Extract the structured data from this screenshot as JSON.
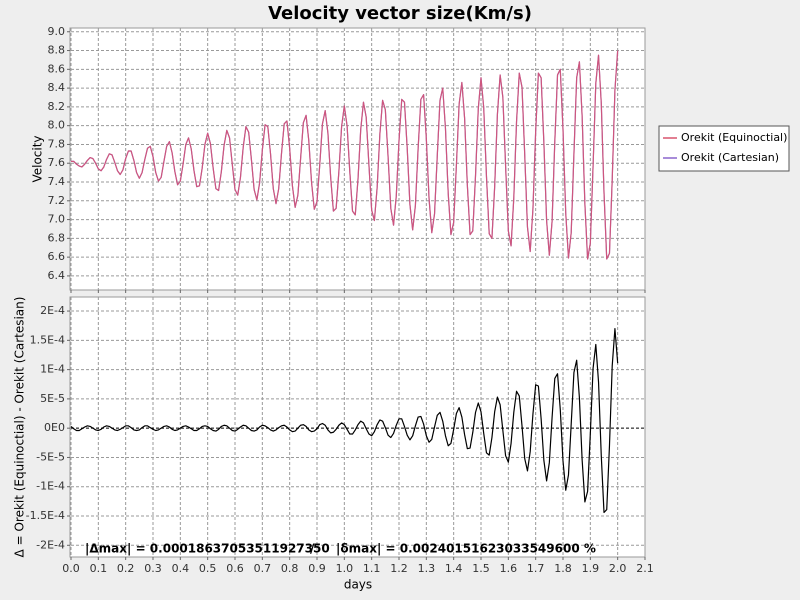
{
  "chart_data": [
    {
      "type": "line",
      "title": "Velocity vector size(Km/s)",
      "ylabel": "Velocity",
      "grid": true,
      "legend": "right",
      "xlim": [
        0,
        2.1
      ],
      "xticks": [
        {
          "value": 0,
          "label": "0.0"
        },
        0.1,
        0.2,
        0.3,
        0.4,
        0.5,
        0.6,
        0.7,
        0.8,
        0.9,
        {
          "value": 1,
          "label": "1.0"
        },
        1.1,
        1.2,
        1.3,
        1.4,
        1.5,
        1.6,
        1.7,
        1.8,
        1.9,
        {
          "value": 2,
          "label": "2.0"
        },
        2.1
      ],
      "ylim": [
        6.25,
        9.04
      ],
      "yticks": [
        6.4,
        6.6,
        6.8,
        {
          "value": 7,
          "label": "7.0"
        },
        7.2,
        7.4,
        7.6,
        7.8,
        {
          "value": 8,
          "label": "8.0"
        },
        8.2,
        8.4,
        8.6,
        8.8,
        {
          "value": 9,
          "label": "9.0"
        }
      ],
      "x": [
        0,
        0.01,
        0.02,
        0.03,
        0.04,
        0.05,
        0.06,
        0.07,
        0.08,
        0.09,
        0.1,
        0.11,
        0.12,
        0.13,
        0.14,
        0.15,
        0.16,
        0.17,
        0.18,
        0.19,
        0.2,
        0.21,
        0.22,
        0.23,
        0.24,
        0.25,
        0.26,
        0.27,
        0.28,
        0.29,
        0.3,
        0.31,
        0.32,
        0.33,
        0.34,
        0.35,
        0.36,
        0.37,
        0.38,
        0.39,
        0.4,
        0.41,
        0.42,
        0.43,
        0.44,
        0.45,
        0.46,
        0.47,
        0.48,
        0.49,
        0.5,
        0.51,
        0.52,
        0.53,
        0.54,
        0.55,
        0.56,
        0.57,
        0.58,
        0.59,
        0.6,
        0.61,
        0.62,
        0.63,
        0.64,
        0.65,
        0.66,
        0.67,
        0.68,
        0.69,
        0.7,
        0.71,
        0.72,
        0.73,
        0.74,
        0.75,
        0.76,
        0.77,
        0.78,
        0.79,
        0.8,
        0.81,
        0.82,
        0.83,
        0.84,
        0.85,
        0.86,
        0.87,
        0.88,
        0.89,
        0.9,
        0.91,
        0.92,
        0.93,
        0.94,
        0.95,
        0.96,
        0.97,
        0.98,
        0.99,
        1,
        1.01,
        1.02,
        1.03,
        1.04,
        1.05,
        1.06,
        1.07,
        1.08,
        1.09,
        1.1,
        1.11,
        1.12,
        1.13,
        1.14,
        1.15,
        1.16,
        1.17,
        1.18,
        1.19,
        1.2,
        1.21,
        1.22,
        1.23,
        1.24,
        1.25,
        1.26,
        1.27,
        1.28,
        1.29,
        1.3,
        1.31,
        1.32,
        1.33,
        1.34,
        1.35,
        1.36,
        1.37,
        1.38,
        1.39,
        1.4,
        1.41,
        1.42,
        1.43,
        1.44,
        1.45,
        1.46,
        1.47,
        1.48,
        1.49,
        1.5,
        1.51,
        1.52,
        1.53,
        1.54,
        1.55,
        1.56,
        1.57,
        1.58,
        1.59,
        1.6,
        1.61,
        1.62,
        1.63,
        1.64,
        1.65,
        1.66,
        1.67,
        1.68,
        1.69,
        1.7,
        1.71,
        1.72,
        1.73,
        1.74,
        1.75,
        1.76,
        1.77,
        1.78,
        1.79,
        1.8,
        1.81,
        1.82,
        1.83,
        1.84,
        1.85,
        1.86,
        1.87,
        1.88,
        1.89,
        1.9,
        1.91,
        1.92,
        1.93,
        1.94,
        1.95,
        1.96,
        1.97,
        1.98,
        1.99,
        2
      ],
      "series": [
        {
          "name": "Orekit (Equinoctial)",
          "color": "#d9546e",
          "values": [
            7.62,
            7.62,
            7.59,
            7.57,
            7.56,
            7.59,
            7.63,
            7.66,
            7.65,
            7.6,
            7.54,
            7.52,
            7.56,
            7.64,
            7.7,
            7.69,
            7.61,
            7.52,
            7.48,
            7.53,
            7.65,
            7.73,
            7.73,
            7.63,
            7.5,
            7.44,
            7.5,
            7.64,
            7.76,
            7.78,
            7.67,
            7.5,
            7.41,
            7.45,
            7.62,
            7.78,
            7.83,
            7.71,
            7.51,
            7.37,
            7.41,
            7.59,
            7.8,
            7.87,
            7.75,
            7.52,
            7.35,
            7.36,
            7.55,
            7.8,
            7.92,
            7.81,
            7.55,
            7.33,
            7.31,
            7.51,
            7.79,
            7.95,
            7.87,
            7.59,
            7.32,
            7.26,
            7.45,
            7.77,
            7.99,
            7.93,
            7.64,
            7.32,
            7.21,
            7.39,
            7.74,
            8.01,
            7.99,
            7.7,
            7.33,
            7.17,
            7.33,
            7.7,
            8.02,
            8.05,
            7.76,
            7.36,
            7.13,
            7.26,
            7.65,
            8.03,
            8.11,
            7.84,
            7.4,
            7.11,
            7.19,
            7.58,
            8.02,
            8.16,
            7.92,
            7.45,
            7.09,
            7.12,
            7.51,
            7.99,
            8.21,
            8.0,
            7.51,
            7.09,
            7.05,
            7.43,
            7.96,
            8.25,
            8.09,
            7.58,
            7.1,
            6.99,
            7.34,
            7.91,
            8.27,
            8.17,
            7.67,
            7.12,
            6.94,
            7.25,
            7.84,
            8.28,
            8.25,
            7.76,
            7.16,
            6.89,
            7.15,
            7.76,
            8.28,
            8.33,
            7.86,
            7.22,
            6.86,
            7.06,
            7.68,
            8.27,
            8.4,
            7.97,
            7.28,
            6.84,
            6.97,
            7.58,
            8.23,
            8.46,
            8.08,
            7.37,
            6.84,
            6.88,
            7.47,
            8.18,
            8.51,
            8.19,
            7.46,
            6.85,
            6.8,
            7.35,
            8.12,
            8.54,
            8.3,
            7.57,
            6.88,
            6.72,
            7.23,
            8.04,
            8.56,
            8.41,
            7.69,
            6.92,
            6.66,
            7.11,
            7.94,
            8.56,
            8.51,
            7.82,
            6.99,
            6.62,
            6.98,
            7.83,
            8.54,
            8.6,
            7.96,
            7.07,
            6.59,
            6.86,
            7.7,
            8.51,
            8.68,
            8.1,
            7.17,
            6.58,
            6.75,
            7.57,
            8.45,
            8.75,
            8.24,
            7.29,
            6.58,
            6.64,
            7.42,
            8.38,
            8.8
          ]
        },
        {
          "name": "Orekit (Cartesian)",
          "color": "#8a66cc",
          "values": [
            7.62,
            7.62,
            7.59,
            7.57,
            7.56,
            7.59,
            7.63,
            7.66,
            7.65,
            7.6,
            7.54,
            7.52,
            7.56,
            7.64,
            7.7,
            7.69,
            7.61,
            7.52,
            7.48,
            7.53,
            7.65,
            7.73,
            7.73,
            7.63,
            7.5,
            7.44,
            7.5,
            7.64,
            7.76,
            7.78,
            7.67,
            7.5,
            7.41,
            7.45,
            7.62,
            7.78,
            7.83,
            7.71,
            7.51,
            7.37,
            7.41,
            7.59,
            7.8,
            7.87,
            7.75,
            7.52,
            7.35,
            7.36,
            7.55,
            7.8,
            7.92,
            7.81,
            7.55,
            7.33,
            7.31,
            7.51,
            7.79,
            7.95,
            7.87,
            7.59,
            7.32,
            7.26,
            7.45,
            7.77,
            7.99,
            7.93,
            7.64,
            7.32,
            7.21,
            7.39,
            7.74,
            8.01,
            7.99,
            7.7,
            7.33,
            7.17,
            7.33,
            7.7,
            8.02,
            8.05,
            7.76,
            7.36,
            7.13,
            7.26,
            7.65,
            8.03,
            8.11,
            7.84,
            7.4,
            7.11,
            7.19,
            7.58,
            8.02,
            8.16,
            7.92,
            7.45,
            7.09,
            7.12,
            7.51,
            7.99,
            8.21,
            8.0,
            7.51,
            7.09,
            7.05,
            7.43,
            7.96,
            8.25,
            8.09,
            7.58,
            7.1,
            6.99,
            7.34,
            7.91,
            8.27,
            8.17,
            7.67,
            7.12,
            6.94,
            7.25,
            7.84,
            8.28,
            8.25,
            7.76,
            7.16,
            6.89,
            7.15,
            7.76,
            8.28,
            8.33,
            7.86,
            7.22,
            6.86,
            7.06,
            7.68,
            8.27,
            8.4,
            7.97,
            7.28,
            6.84,
            6.97,
            7.58,
            8.23,
            8.46,
            8.08,
            7.37,
            6.84,
            6.88,
            7.47,
            8.18,
            8.51,
            8.19,
            7.46,
            6.85,
            6.8,
            7.35,
            8.12,
            8.54,
            8.3,
            7.57,
            6.88,
            6.72,
            7.23,
            8.04,
            8.56,
            8.41,
            7.69,
            6.92,
            6.66,
            7.11,
            7.94,
            8.56,
            8.51,
            7.82,
            6.99,
            6.62,
            6.98,
            7.83,
            8.54,
            8.6,
            7.96,
            7.07,
            6.59,
            6.86,
            7.7,
            8.51,
            8.68,
            8.1,
            7.17,
            6.58,
            6.75,
            7.57,
            8.45,
            8.75,
            8.24,
            7.29,
            6.58,
            6.64,
            7.42,
            8.38,
            8.8
          ]
        }
      ]
    },
    {
      "type": "line",
      "xlabel": "days",
      "ylabel": "Δ = Orekit (Equinoctial) - Orekit (Cartesian)",
      "grid": true,
      "xlim": [
        0,
        2.1
      ],
      "xticks": [
        {
          "value": 0,
          "label": "0.0"
        },
        0.1,
        0.2,
        0.3,
        0.4,
        0.5,
        0.6,
        0.7,
        0.8,
        0.9,
        {
          "value": 1,
          "label": "1.0"
        },
        1.1,
        1.2,
        1.3,
        1.4,
        1.5,
        1.6,
        1.7,
        1.8,
        1.9,
        {
          "value": 2,
          "label": "2.0"
        },
        2.1
      ],
      "ylim": [
        -0.00022,
        0.000224
      ],
      "yticks": [
        {
          "value": -0.0002,
          "label": "-2E-4"
        },
        {
          "value": -0.00015,
          "label": "-1.5E-4"
        },
        {
          "value": -0.0001,
          "label": "-1E-4"
        },
        {
          "value": -5e-05,
          "label": "-5E-5"
        },
        {
          "value": 0,
          "label": "0E0"
        },
        {
          "value": 5e-05,
          "label": "5E-5"
        },
        {
          "value": 0.0001,
          "label": "1E-4"
        },
        {
          "value": 0.00015,
          "label": "1.5E-4"
        },
        {
          "value": 0.0002,
          "label": "2E-4"
        }
      ],
      "annotations": [
        "|Δmax| = 0.00018637053511927350",
        "/",
        "|δmax| = 0.00240151623033549600 %"
      ],
      "x": [
        0,
        0.01,
        0.02,
        0.03,
        0.04,
        0.05,
        0.06,
        0.07,
        0.08,
        0.09,
        0.1,
        0.11,
        0.12,
        0.13,
        0.14,
        0.15,
        0.16,
        0.17,
        0.18,
        0.19,
        0.2,
        0.21,
        0.22,
        0.23,
        0.24,
        0.25,
        0.26,
        0.27,
        0.28,
        0.29,
        0.3,
        0.31,
        0.32,
        0.33,
        0.34,
        0.35,
        0.36,
        0.37,
        0.38,
        0.39,
        0.4,
        0.41,
        0.42,
        0.43,
        0.44,
        0.45,
        0.46,
        0.47,
        0.48,
        0.49,
        0.5,
        0.51,
        0.52,
        0.53,
        0.54,
        0.55,
        0.56,
        0.57,
        0.58,
        0.59,
        0.6,
        0.61,
        0.62,
        0.63,
        0.64,
        0.65,
        0.66,
        0.67,
        0.68,
        0.69,
        0.7,
        0.71,
        0.72,
        0.73,
        0.74,
        0.75,
        0.76,
        0.77,
        0.78,
        0.79,
        0.8,
        0.81,
        0.82,
        0.83,
        0.84,
        0.85,
        0.86,
        0.87,
        0.88,
        0.89,
        0.9,
        0.91,
        0.92,
        0.93,
        0.94,
        0.95,
        0.96,
        0.97,
        0.98,
        0.99,
        1,
        1.01,
        1.02,
        1.03,
        1.04,
        1.05,
        1.06,
        1.07,
        1.08,
        1.09,
        1.1,
        1.11,
        1.12,
        1.13,
        1.14,
        1.15,
        1.16,
        1.17,
        1.18,
        1.19,
        1.2,
        1.21,
        1.22,
        1.23,
        1.24,
        1.25,
        1.26,
        1.27,
        1.28,
        1.29,
        1.3,
        1.31,
        1.32,
        1.33,
        1.34,
        1.35,
        1.36,
        1.37,
        1.38,
        1.39,
        1.4,
        1.41,
        1.42,
        1.43,
        1.44,
        1.45,
        1.46,
        1.47,
        1.48,
        1.49,
        1.5,
        1.51,
        1.52,
        1.53,
        1.54,
        1.55,
        1.56,
        1.57,
        1.58,
        1.59,
        1.6,
        1.61,
        1.62,
        1.63,
        1.64,
        1.65,
        1.66,
        1.67,
        1.68,
        1.69,
        1.7,
        1.71,
        1.72,
        1.73,
        1.74,
        1.75,
        1.76,
        1.77,
        1.78,
        1.79,
        1.8,
        1.81,
        1.82,
        1.83,
        1.84,
        1.85,
        1.86,
        1.87,
        1.88,
        1.89,
        1.9,
        1.91,
        1.92,
        1.93,
        1.94,
        1.95,
        1.96,
        1.97,
        1.98,
        1.99,
        2
      ],
      "series": [
        {
          "color": "#000000",
          "values": [
            3e-06,
            -1e-06,
            -4e-06,
            -4e-06,
            -1e-06,
            2e-06,
            4e-06,
            3e-06,
            0,
            -3e-06,
            -4e-06,
            -2e-06,
            2e-06,
            4e-06,
            3e-06,
            0,
            -3e-06,
            -4e-06,
            -2e-06,
            1e-06,
            4e-06,
            4e-06,
            1e-06,
            -3e-06,
            -4e-06,
            -3e-06,
            1e-06,
            4e-06,
            4e-06,
            1e-06,
            -2e-06,
            -4e-06,
            -3e-06,
            0,
            3e-06,
            4e-06,
            2e-06,
            -2e-06,
            -4e-06,
            -3e-06,
            0,
            3e-06,
            4e-06,
            2e-06,
            -1e-06,
            -4e-06,
            -4e-06,
            -1e-06,
            3e-06,
            4e-06,
            3e-06,
            -1e-06,
            -4e-06,
            -5e-06,
            -2e-06,
            3e-06,
            5e-06,
            4e-06,
            0,
            -4e-06,
            -5e-06,
            -2e-06,
            2e-06,
            5e-06,
            4e-06,
            0,
            -4e-06,
            -5e-06,
            -3e-06,
            2e-06,
            5e-06,
            4e-06,
            1e-06,
            -3e-06,
            -5e-06,
            -3e-06,
            1e-06,
            4e-06,
            5e-06,
            2e-06,
            -3e-06,
            -6e-06,
            -5e-06,
            0,
            5e-06,
            6e-06,
            3e-06,
            -3e-06,
            -6e-06,
            -5e-06,
            -1e-06,
            6e-06,
            8e-06,
            5e-06,
            -3e-06,
            -8e-06,
            -7e-06,
            -2e-06,
            5e-06,
            9e-06,
            6e-06,
            -2e-06,
            -1e-05,
            -1e-05,
            -3e-06,
            6e-06,
            1.2e-05,
            9e-06,
            -1e-06,
            -1e-05,
            -1.3e-05,
            -6e-06,
            6e-06,
            1.4e-05,
            1.2e-05,
            1e-06,
            -1.2e-05,
            -1.6e-05,
            -9e-06,
            5e-06,
            1.6e-05,
            1.6e-05,
            3e-06,
            -1.2e-05,
            -2e-05,
            -1.3e-05,
            4e-06,
            1.9e-05,
            2e-05,
            7e-06,
            -1.3e-05,
            -2.4e-05,
            -1.9e-05,
            2e-06,
            2.2e-05,
            2.7e-05,
            1.2e-05,
            -1.3e-05,
            -3e-05,
            -2.6e-05,
            -2e-06,
            2.5e-05,
            3.5e-05,
            1.9e-05,
            -1.1e-05,
            -3.5e-05,
            -3.4e-05,
            -7e-06,
            2.7e-05,
            4.3e-05,
            2.8e-05,
            -9e-06,
            -4.2e-05,
            -4.6e-05,
            -1.6e-05,
            2.8e-05,
            5.3e-05,
            4e-05,
            -4e-06,
            -4.7e-05,
            -5.8e-05,
            -2.6e-05,
            2.7e-05,
            6.3e-05,
            5.5e-05,
            4e-06,
            -5.2e-05,
            -7.3e-05,
            -4e-05,
            2.4e-05,
            7.4e-05,
            7.2e-05,
            1.6e-05,
            -5.5e-05,
            -9e-05,
            -5.9e-05,
            1.8e-05,
            8.5e-05,
            9.3e-05,
            3.2e-05,
            -5.6e-05,
            -0.000106,
            -8e-05,
            7e-06,
            9.5e-05,
            0.000116,
            5.2e-05,
            -5.4e-05,
            -0.000126,
            -0.000108,
            -9e-06,
            0.000102,
            0.000143,
            7.9e-05,
            -4.7e-05,
            -0.000144,
            -0.000139,
            -3e-05,
            0.000106,
            0.00017,
            0.000111
          ]
        }
      ]
    }
  ]
}
